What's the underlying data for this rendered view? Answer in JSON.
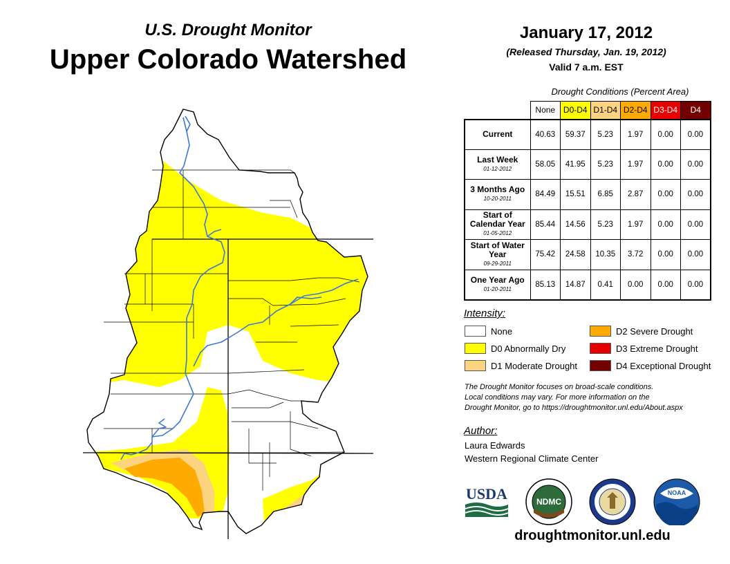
{
  "header": {
    "subtitle": "U.S. Drought Monitor",
    "title": "Upper Colorado Watershed",
    "date": "January 17, 2012",
    "released": "(Released Thursday, Jan. 19, 2012)",
    "valid": "Valid 7 a.m. EST"
  },
  "table": {
    "caption": "Drought Conditions (Percent Area)",
    "columns": [
      "None",
      "D0-D4",
      "D1-D4",
      "D2-D4",
      "D3-D4",
      "D4"
    ],
    "column_colors": [
      "#ffffff",
      "#ffff00",
      "#fcd37f",
      "#ffaa00",
      "#e60000",
      "#730000"
    ],
    "column_text_colors": [
      "#000000",
      "#000000",
      "#000000",
      "#000000",
      "#ffffff",
      "#ffffff"
    ],
    "rows": [
      {
        "label": "Current",
        "sublabel": "",
        "values": [
          "40.63",
          "59.37",
          "5.23",
          "1.97",
          "0.00",
          "0.00"
        ]
      },
      {
        "label": "Last Week",
        "sublabel": "01-12-2012",
        "values": [
          "58.05",
          "41.95",
          "5.23",
          "1.97",
          "0.00",
          "0.00"
        ]
      },
      {
        "label": "3 Months Ago",
        "sublabel": "10-20-2011",
        "values": [
          "84.49",
          "15.51",
          "6.85",
          "2.87",
          "0.00",
          "0.00"
        ]
      },
      {
        "label": "Start of Calendar Year",
        "sublabel": "01-05-2012",
        "values": [
          "85.44",
          "14.56",
          "5.23",
          "1.97",
          "0.00",
          "0.00"
        ]
      },
      {
        "label": "Start of Water Year",
        "sublabel": "09-29-2011",
        "values": [
          "75.42",
          "24.58",
          "10.35",
          "3.72",
          "0.00",
          "0.00"
        ]
      },
      {
        "label": "One Year Ago",
        "sublabel": "01-20-2011",
        "values": [
          "85.13",
          "14.87",
          "0.41",
          "0.00",
          "0.00",
          "0.00"
        ]
      }
    ]
  },
  "legend": {
    "title": "Intensity:",
    "items": [
      {
        "label": "None",
        "color": "#ffffff"
      },
      {
        "label": "D0 Abnormally Dry",
        "color": "#ffff00"
      },
      {
        "label": "D1 Moderate Drought",
        "color": "#fcd37f"
      },
      {
        "label": "D2 Severe Drought",
        "color": "#ffaa00"
      },
      {
        "label": "D3 Extreme Drought",
        "color": "#e60000"
      },
      {
        "label": "D4 Exceptional Drought",
        "color": "#730000"
      }
    ]
  },
  "note": {
    "line1": "The Drought Monitor focuses on broad-scale conditions.",
    "line2": "Local conditions may vary. For more information on the",
    "line3": "Drought Monitor, go to https://droughtmonitor.unl.edu/About.aspx"
  },
  "author": {
    "title": "Author:",
    "name": "Laura Edwards",
    "org": "Western Regional Climate Center"
  },
  "logos": {
    "usda": "USDA",
    "ndmc": "NDMC",
    "noaa": "NOAA"
  },
  "website": "droughtmonitor.unl.edu",
  "map_colors": {
    "none": "#ffffff",
    "d0": "#ffff00",
    "d1": "#fcd37f",
    "d2": "#ffaa00",
    "river": "#3a78d8",
    "boundary": "#000000"
  }
}
